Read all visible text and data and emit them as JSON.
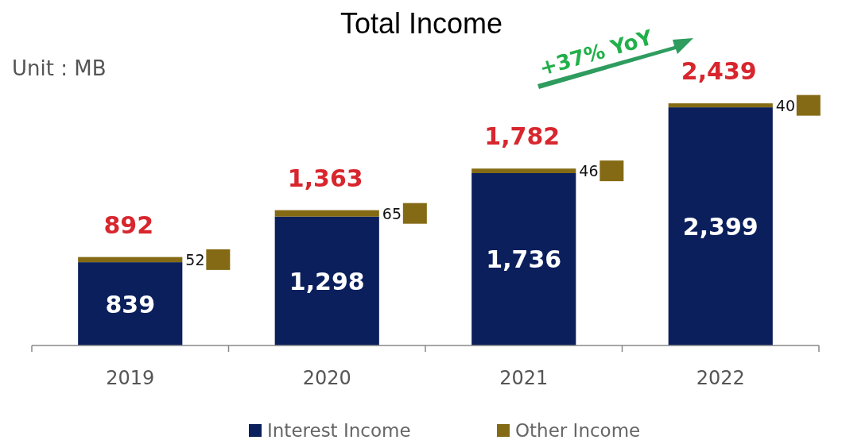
{
  "chart_data": {
    "type": "bar",
    "title": "Total Income",
    "stacked": true,
    "categories": [
      "2019",
      "2020",
      "2021",
      "2022"
    ],
    "series": [
      {
        "name": "Interest Income",
        "color": "#0b1f5c",
        "values": [
          839,
          1298,
          1736,
          2399
        ],
        "value_labels": [
          "839",
          "1,298",
          "1,736",
          "2,399"
        ]
      },
      {
        "name": "Other Income",
        "color": "#846a14",
        "values": [
          52,
          65,
          46,
          40
        ],
        "value_labels": [
          "52",
          "65",
          "46",
          "40"
        ]
      }
    ],
    "totals": [
      "892",
      "1,363",
      "1,782",
      "2,439"
    ],
    "legend": "bottom",
    "annotations": [
      "Unit : MB",
      "+37% YoY"
    ]
  }
}
